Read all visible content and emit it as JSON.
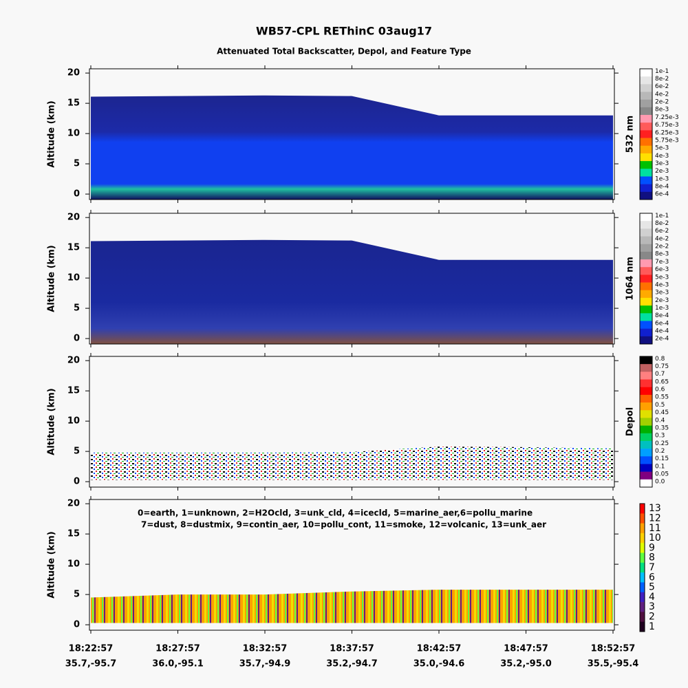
{
  "chart_data": [
    {
      "type": "heatmap",
      "title": "WB57-CPL REThinC 03aug17",
      "subtitle": "Attenuated Total Backscatter, Depol, and Feature Type",
      "ylabel": "Altitude (km)",
      "ylim": [
        -0.9,
        20.7
      ],
      "yticks": [
        0,
        5,
        10,
        15,
        20
      ],
      "values": [
        16.1,
        16.2,
        16.3,
        16.2,
        13.0,
        13.0,
        13.0
      ],
      "colorbar_label": "532 nm",
      "colorbar_labels": [
        "1e-1",
        "8e-2",
        "6e-2",
        "4e-2",
        "2e-2",
        "8e-3",
        "7.25e-3",
        "6.75e-3",
        "6.25e-3",
        "5.75e-3",
        "5e-3",
        "4e-3",
        "3e-3",
        "2e-3",
        "1e-3",
        "8e-4",
        "6e-4"
      ],
      "colorbar_colors": [
        "#ffffff",
        "#e6e6e6",
        "#d0d0d0",
        "#b8b8b8",
        "#a0a0a0",
        "#888888",
        "#ff9ab0",
        "#ff5a5a",
        "#ff2020",
        "#ff7000",
        "#ffaa00",
        "#ffe000",
        "#00c000",
        "#00e0a0",
        "#0050ff",
        "#1020d0",
        "#101080"
      ]
    },
    {
      "type": "heatmap",
      "ylabel": "Altitude (km)",
      "ylim": [
        -0.9,
        20.7
      ],
      "yticks": [
        0,
        5,
        10,
        15,
        20
      ],
      "values": [
        16.1,
        16.2,
        16.3,
        16.2,
        13.0,
        13.0,
        13.0
      ],
      "colorbar_label": "1064 nm",
      "colorbar_labels": [
        "1e-1",
        "8e-2",
        "6e-2",
        "4e-2",
        "2e-2",
        "8e-3",
        "7e-3",
        "6e-3",
        "5e-3",
        "4e-3",
        "3e-3",
        "2e-3",
        "1e-3",
        "8e-4",
        "6e-4",
        "4e-4",
        "2e-4"
      ],
      "colorbar_colors": [
        "#ffffff",
        "#e6e6e6",
        "#d0d0d0",
        "#b8b8b8",
        "#a0a0a0",
        "#888888",
        "#ff9ab0",
        "#ff5a5a",
        "#ff2020",
        "#ff7000",
        "#ffaa00",
        "#ffe000",
        "#00c000",
        "#00e0a0",
        "#0050ff",
        "#1020d0",
        "#101080"
      ]
    },
    {
      "type": "heatmap",
      "ylabel": "Altitude (km)",
      "ylim": [
        -0.9,
        20.7
      ],
      "yticks": [
        0,
        5,
        10,
        15,
        20
      ],
      "values": [
        4.8,
        4.8,
        4.8,
        4.9,
        5.8,
        5.7,
        5.5
      ],
      "colorbar_label": "Depol",
      "colorbar_labels": [
        "0.8",
        "0.75",
        "0.7",
        "0.65",
        "0.6",
        "0.55",
        "0.5",
        "0.45",
        "0.4",
        "0.35",
        "0.3",
        "0.25",
        "0.2",
        "0.15",
        "0.1",
        "0.05",
        "0.0"
      ],
      "colorbar_colors": [
        "#000000",
        "#c06060",
        "#ff8080",
        "#ff3030",
        "#ff0000",
        "#ff6000",
        "#ffa000",
        "#e0e000",
        "#a0d000",
        "#00b000",
        "#00d060",
        "#00c0c0",
        "#00a0ff",
        "#0050ff",
        "#0000c0",
        "#800080",
        "#ffffff"
      ]
    },
    {
      "type": "heatmap",
      "ylabel": "Altitude (km)",
      "ylim": [
        -0.9,
        20.7
      ],
      "yticks": [
        0,
        5,
        10,
        15,
        20
      ],
      "values": [
        4.5,
        5.0,
        5.0,
        5.5,
        5.8,
        5.8,
        5.8
      ],
      "annotations": [
        "0=earth, 1=unknown, 2=H2Ocld, 3=unk_cld, 4=icecld, 5=marine_aer,6=pollu_marine",
        "7=dust, 8=dustmix, 9=contin_aer, 10=pollu_cont, 11=smoke, 12=volcanic, 13=unk_aer"
      ],
      "colorbar_labels": [
        13,
        12,
        11,
        10,
        9,
        8,
        7,
        6,
        5,
        4,
        3,
        2,
        1
      ],
      "colorbar_colors": [
        "#ff0000",
        "#ff5000",
        "#ffa000",
        "#ffd000",
        "#e0ff00",
        "#60ff40",
        "#00e080",
        "#00c0ff",
        "#0060ff",
        "#4020c0",
        "#602080",
        "#501040",
        "#200020"
      ],
      "categories": [
        "18:22:57",
        "18:27:57",
        "18:32:57",
        "18:37:57",
        "18:42:57",
        "18:47:57",
        "18:52:57"
      ],
      "categories2": [
        "35.7,-95.7",
        "36.0,-95.1",
        "35.7,-94.9",
        "35.2,-94.7",
        "35.0,-94.6",
        "35.2,-95.0",
        "35.5,-95.4"
      ]
    }
  ]
}
